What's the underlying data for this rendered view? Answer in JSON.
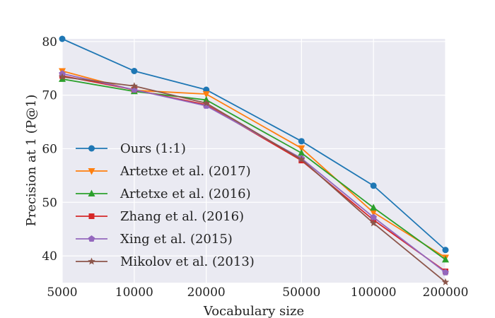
{
  "chart_data": {
    "type": "line",
    "title": "",
    "xlabel": "Vocabulary size",
    "ylabel": "Precision at 1 (P@1)",
    "x_scale": "log",
    "categories": [
      "5000",
      "10000",
      "20000",
      "50000",
      "100000",
      "200000"
    ],
    "x": [
      5000,
      10000,
      20000,
      50000,
      100000,
      200000
    ],
    "xlim": [
      5000,
      200000
    ],
    "ylim": [
      35,
      80.5
    ],
    "yticks": [
      40,
      50,
      60,
      70,
      80
    ],
    "grid": true,
    "legend_position": "lower-left",
    "series": [
      {
        "name": "Ours (1:1)",
        "color": "#1f77b4",
        "marker": "circle",
        "values": [
          80.5,
          74.5,
          71.0,
          61.4,
          53.1,
          41.1
        ]
      },
      {
        "name": "Artetxe et al. (2017)",
        "color": "#ff7f0e",
        "marker": "triangle-down",
        "values": [
          74.5,
          70.9,
          70.2,
          60.1,
          48.1,
          39.7
        ]
      },
      {
        "name": "Artetxe et al. (2016)",
        "color": "#2ca02c",
        "marker": "triangle-up",
        "values": [
          73.0,
          70.7,
          69.1,
          59.2,
          49.0,
          39.3
        ]
      },
      {
        "name": "Zhang et al. (2016)",
        "color": "#d62728",
        "marker": "square",
        "values": [
          73.6,
          71.0,
          68.2,
          57.8,
          46.7,
          37.1
        ]
      },
      {
        "name": "Xing et al. (2015)",
        "color": "#9467bd",
        "marker": "pentagon",
        "values": [
          74.0,
          71.0,
          68.0,
          58.2,
          47.2,
          36.9
        ]
      },
      {
        "name": "Mikolov et al. (2013)",
        "color": "#8c564b",
        "marker": "star",
        "values": [
          73.4,
          71.7,
          68.5,
          58.0,
          46.1,
          35.1
        ]
      }
    ]
  }
}
